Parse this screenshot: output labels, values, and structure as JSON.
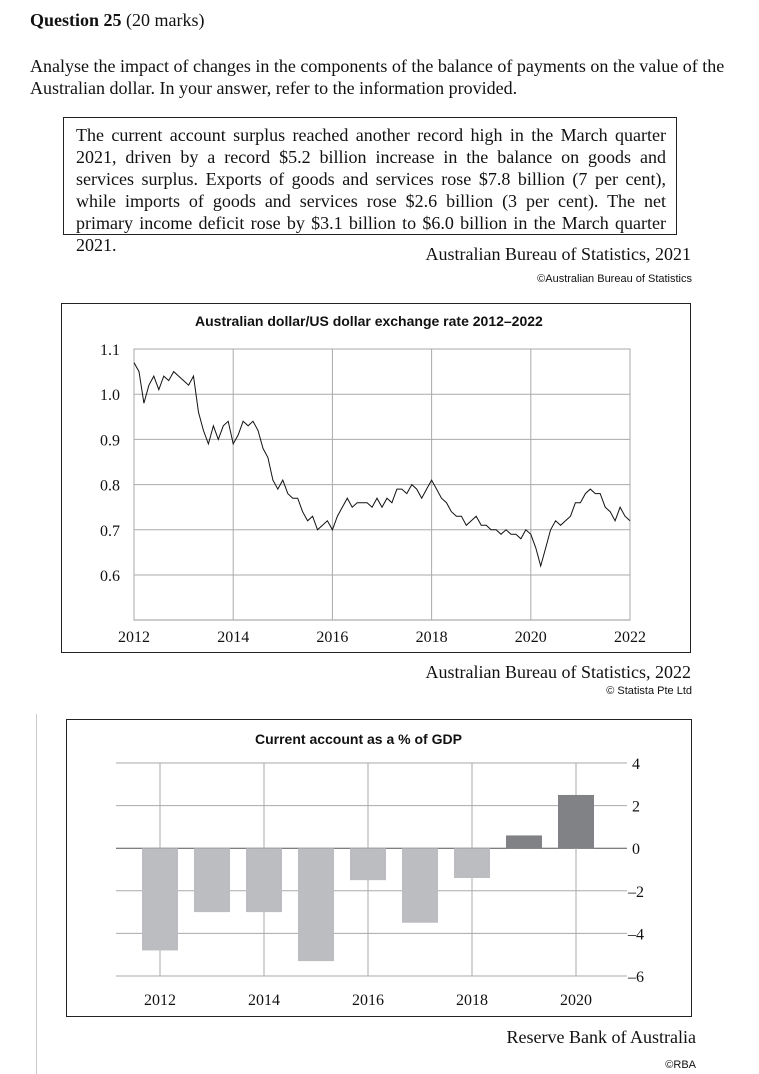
{
  "question": {
    "number": "Question 25",
    "marks": "(20 marks)",
    "prompt": "Analyse the impact of changes in the components of the balance of payments on the value of the Australian dollar. In your answer, refer to the information provided."
  },
  "extract": {
    "text": "The current account surplus reached another record high in the March quarter 2021, driven by a record $5.2 billion increase in the balance on goods and services surplus. Exports of goods and services rose $7.8 billion (7 per cent), while imports of goods and services rose $2.6 billion (3 per cent). The net primary income deficit rose by $3.1 billion to $6.0 billion in the March quarter 2021.",
    "source": "Australian Bureau of Statistics, 2021",
    "copyright": "©Australian Bureau of Statistics"
  },
  "exchange_source": "Australian Bureau of Statistics, 2022",
  "exchange_copyright": "© Statista Pte Ltd",
  "ca_source": "Reserve Bank of Australia",
  "ca_copyright": "©RBA",
  "chart_data": [
    {
      "type": "line",
      "title": "Australian dollar/US dollar exchange rate 2012–2022",
      "xlim": [
        2012,
        2022
      ],
      "ylim": [
        0.55,
        1.1
      ],
      "xticks": [
        "2012",
        "2014",
        "2016",
        "2018",
        "2020",
        "2022"
      ],
      "yticks": [
        "1.1",
        "1.0",
        "0.9",
        "0.8",
        "0.7",
        "0.6"
      ],
      "grid": true,
      "series": [
        {
          "x": [
            2012.0,
            2012.1,
            2012.2,
            2012.3,
            2012.4,
            2012.5,
            2012.6,
            2012.7,
            2012.8,
            2012.9,
            2013.0,
            2013.1,
            2013.2,
            2013.3,
            2013.4,
            2013.5,
            2013.6,
            2013.7,
            2013.8,
            2013.9,
            2014.0,
            2014.1,
            2014.2,
            2014.3,
            2014.4,
            2014.5,
            2014.6,
            2014.7,
            2014.8,
            2014.9,
            2015.0,
            2015.1,
            2015.2,
            2015.3,
            2015.4,
            2015.5,
            2015.6,
            2015.7,
            2015.8,
            2015.9,
            2016.0,
            2016.1,
            2016.2,
            2016.3,
            2016.4,
            2016.5,
            2016.6,
            2016.7,
            2016.8,
            2016.9,
            2017.0,
            2017.1,
            2017.2,
            2017.3,
            2017.4,
            2017.5,
            2017.6,
            2017.7,
            2017.8,
            2017.9,
            2018.0,
            2018.1,
            2018.2,
            2018.3,
            2018.4,
            2018.5,
            2018.6,
            2018.7,
            2018.8,
            2018.9,
            2019.0,
            2019.1,
            2019.2,
            2019.3,
            2019.4,
            2019.5,
            2019.6,
            2019.7,
            2019.8,
            2019.9,
            2020.0,
            2020.1,
            2020.2,
            2020.3,
            2020.4,
            2020.5,
            2020.6,
            2020.7,
            2020.8,
            2020.9,
            2021.0,
            2021.1,
            2021.2,
            2021.3,
            2021.4,
            2021.5,
            2021.6,
            2021.7,
            2021.8,
            2021.9,
            2022.0
          ],
          "y": [
            1.07,
            1.05,
            0.98,
            1.02,
            1.04,
            1.01,
            1.04,
            1.03,
            1.05,
            1.04,
            1.03,
            1.02,
            1.04,
            0.96,
            0.92,
            0.89,
            0.93,
            0.9,
            0.93,
            0.94,
            0.89,
            0.91,
            0.94,
            0.93,
            0.94,
            0.92,
            0.88,
            0.86,
            0.81,
            0.79,
            0.81,
            0.78,
            0.77,
            0.77,
            0.74,
            0.72,
            0.73,
            0.7,
            0.71,
            0.72,
            0.7,
            0.73,
            0.75,
            0.77,
            0.75,
            0.76,
            0.76,
            0.76,
            0.75,
            0.77,
            0.75,
            0.77,
            0.76,
            0.79,
            0.79,
            0.78,
            0.8,
            0.79,
            0.77,
            0.79,
            0.81,
            0.79,
            0.77,
            0.76,
            0.74,
            0.73,
            0.73,
            0.71,
            0.72,
            0.73,
            0.71,
            0.71,
            0.7,
            0.7,
            0.69,
            0.7,
            0.69,
            0.69,
            0.68,
            0.7,
            0.69,
            0.66,
            0.62,
            0.66,
            0.7,
            0.72,
            0.71,
            0.72,
            0.73,
            0.76,
            0.76,
            0.78,
            0.79,
            0.78,
            0.78,
            0.75,
            0.74,
            0.72,
            0.75,
            0.73,
            0.72
          ]
        }
      ]
    },
    {
      "type": "bar",
      "title": "Current account as a % of GDP",
      "categories": [
        "2012",
        "2013",
        "2014",
        "2015",
        "2016",
        "2017",
        "2018",
        "2019",
        "2020"
      ],
      "xticks": [
        "2012",
        "2014",
        "2016",
        "2018",
        "2020"
      ],
      "values": [
        -4.8,
        -3.0,
        -3.0,
        -5.3,
        -1.5,
        -3.5,
        -1.4,
        0.6,
        2.5
      ],
      "ylim": [
        -6,
        4
      ],
      "yticks": [
        "4",
        "2",
        "0",
        "–2",
        "–4",
        "–6"
      ],
      "grid": true,
      "colors": {
        "deficit": "#bcbdc0",
        "surplus": "#808285"
      }
    }
  ]
}
